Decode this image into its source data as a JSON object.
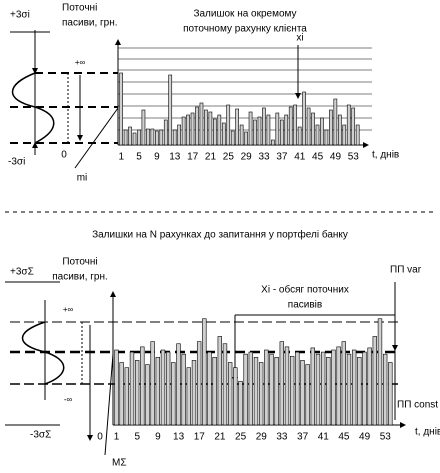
{
  "chart_data": [
    {
      "type": "bar",
      "title_lines": [
        "Залишок на окремому",
        "поточному рахунку клієнта"
      ],
      "y_label_lines": [
        "Поточні",
        "пасиви, грн."
      ],
      "x_label": "t, днів",
      "annotations": {
        "plus_sigma": "+3σi",
        "minus_sigma": "-3σi",
        "infinity": "+∞",
        "zero": "0",
        "mean": "mi",
        "point": "xi"
      },
      "categories": [
        "1",
        null,
        null,
        null,
        "5",
        null,
        null,
        null,
        "9",
        null,
        null,
        null,
        "13",
        null,
        null,
        null,
        "17",
        null,
        null,
        null,
        "21",
        null,
        null,
        null,
        "25",
        null,
        null,
        null,
        "29",
        null,
        null,
        null,
        "33",
        null,
        null,
        null,
        "37",
        null,
        null,
        null,
        "41",
        null,
        null,
        null,
        "45",
        null,
        null,
        null,
        "49",
        null,
        null,
        null,
        "53",
        null
      ],
      "values": [
        7.2,
        1.5,
        1.8,
        1.2,
        1.5,
        3.5,
        1.6,
        1.6,
        1.4,
        1.5,
        2.5,
        7.0,
        1.5,
        2.0,
        2.8,
        3.0,
        3.2,
        3.8,
        4.2,
        3.5,
        3.3,
        2.6,
        3.0,
        2.2,
        4.0,
        1.4,
        3.6,
        2.0,
        1.3,
        3.3,
        2.5,
        2.8,
        3.7,
        3.0,
        0.5,
        3.2,
        2.5,
        3.0,
        3.8,
        4.0,
        1.8,
        5.3,
        3.7,
        3.2,
        2.0,
        2.7,
        1.5,
        3.5,
        4.6,
        3.0,
        2.0,
        4.0,
        3.7,
        2.0
      ],
      "color": "#d0d0d0",
      "ylim": [
        0,
        10
      ]
    },
    {
      "type": "bar",
      "title": "Залишки на N рахунках до запитання у портфелі банку",
      "y_label_lines": [
        "Поточні",
        "пасиви, грн."
      ],
      "x_label": "t, днів",
      "annotations": {
        "plus_sigma": "+3σΣ",
        "minus_sigma": "-3σΣ",
        "plus_infinity": "+∞",
        "minus_infinity": "-∞",
        "zero": "0",
        "mean": "MΣ",
        "volume_lines": [
          "Xi - обсяг поточних",
          "пасивів"
        ],
        "var": "ПП var",
        "const": "ПП const"
      },
      "categories": [
        "1",
        null,
        null,
        null,
        "5",
        null,
        null,
        null,
        "9",
        null,
        null,
        null,
        "13",
        null,
        null,
        null,
        "17",
        null,
        null,
        null,
        "21",
        null,
        null,
        null,
        "25",
        null,
        null,
        null,
        "29",
        null,
        null,
        null,
        "33",
        null,
        null,
        null,
        "37",
        null,
        null,
        null,
        "41",
        null,
        null,
        null,
        "45",
        null,
        null,
        null,
        "49",
        null,
        null,
        null,
        "53",
        null
      ],
      "values": [
        7.2,
        6.0,
        5.5,
        7.0,
        6.2,
        7.5,
        5.8,
        8.0,
        6.5,
        7.2,
        7.0,
        6.0,
        7.8,
        6.8,
        5.5,
        6.2,
        8.0,
        10.2,
        7.0,
        6.5,
        8.5,
        7.8,
        6.0,
        5.5,
        4.2,
        6.8,
        7.0,
        6.5,
        6.0,
        7.2,
        6.8,
        6.5,
        8.0,
        7.5,
        6.6,
        7.0,
        6.2,
        5.8,
        7.4,
        6.8,
        7.0,
        6.5,
        7.2,
        7.5,
        8.0,
        6.8,
        7.2,
        6.5,
        7.0,
        7.4,
        8.5,
        10.2,
        6.8,
        6.0
      ],
      "color": "#d0d0d0",
      "ylim": [
        0,
        12
      ]
    }
  ]
}
